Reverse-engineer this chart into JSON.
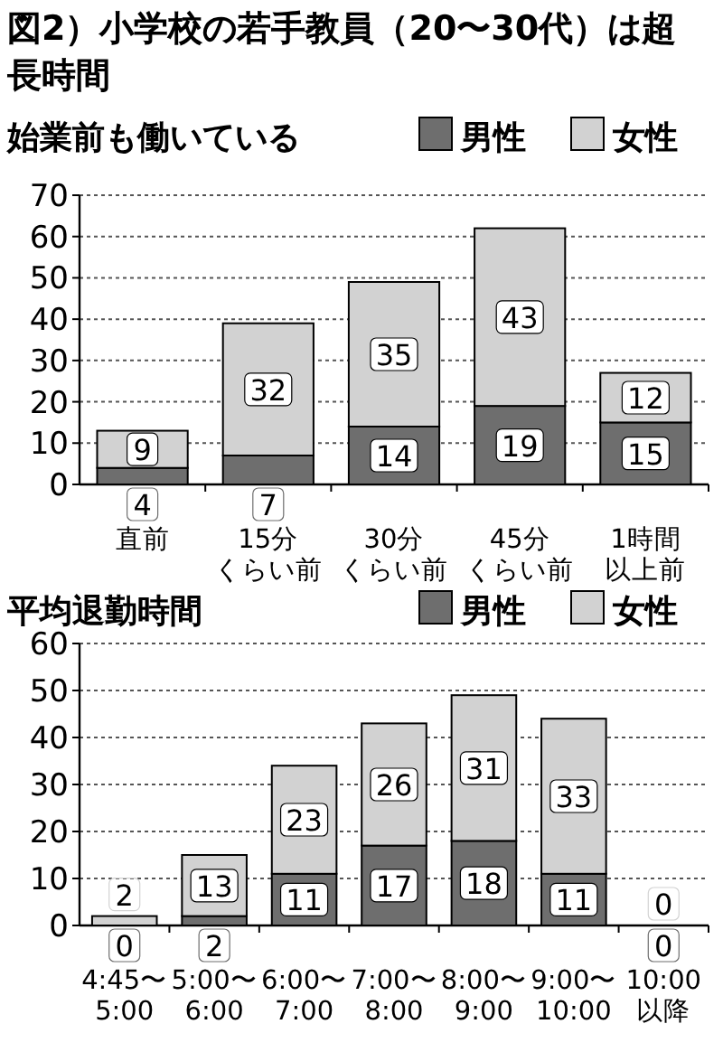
{
  "chart_data": [
    {
      "type": "bar",
      "title": "図2）小学校の若手教員（20〜30代）は超長時間",
      "subtitle": "始業前も働いている",
      "categories": [
        "直前",
        "15分くらい前",
        "30分くらい前",
        "45分くらい前",
        "1時間以上前"
      ],
      "stacked": true,
      "series": [
        {
          "name": "男性",
          "color": "#6e6e6e",
          "values": [
            4,
            7,
            14,
            19,
            15
          ]
        },
        {
          "name": "女性",
          "color": "#d2d2d2",
          "values": [
            9,
            32,
            35,
            43,
            12
          ]
        }
      ],
      "ylim": [
        0,
        70
      ],
      "yticks": [
        0,
        10,
        20,
        30,
        40,
        50,
        60,
        70
      ],
      "grid": "y",
      "legend": "top right",
      "data_labels": true
    },
    {
      "type": "bar",
      "title": "平均退勤時間",
      "categories": [
        "4:45〜5:00",
        "5:00〜6:00",
        "6:00〜7:00",
        "7:00〜8:00",
        "8:00〜9:00",
        "9:00〜10:00",
        "10:00以降"
      ],
      "stacked": true,
      "series": [
        {
          "name": "男性",
          "color": "#6e6e6e",
          "values": [
            0,
            2,
            11,
            17,
            18,
            11,
            0
          ]
        },
        {
          "name": "女性",
          "color": "#d2d2d2",
          "values": [
            2,
            13,
            23,
            26,
            31,
            33,
            0
          ]
        }
      ],
      "ylim": [
        0,
        60
      ],
      "yticks": [
        0,
        10,
        20,
        30,
        40,
        50,
        60
      ],
      "grid": "y",
      "legend": "top right",
      "data_labels": true
    }
  ]
}
